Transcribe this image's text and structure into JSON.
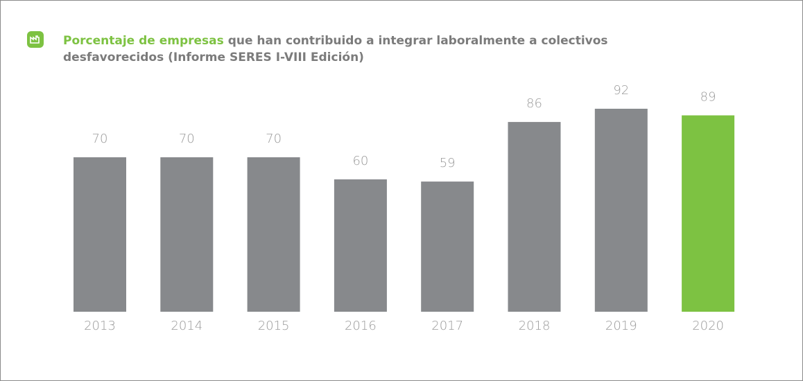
{
  "chart_data": {
    "type": "bar",
    "title_highlight": "Porcentaje de empresas",
    "title": "que han contribuido a integrar laboralmente a colectivos desfavorecidos (Informe SERES I-VIII Edición)",
    "categories": [
      "2013",
      "2014",
      "2015",
      "2016",
      "2017",
      "2018",
      "2019",
      "2020"
    ],
    "values": [
      70,
      70,
      70,
      60,
      59,
      86,
      92,
      89
    ],
    "colors": [
      "#87898c",
      "#87898c",
      "#87898c",
      "#87898c",
      "#87898c",
      "#87898c",
      "#87898c",
      "#7dc242"
    ]
  }
}
